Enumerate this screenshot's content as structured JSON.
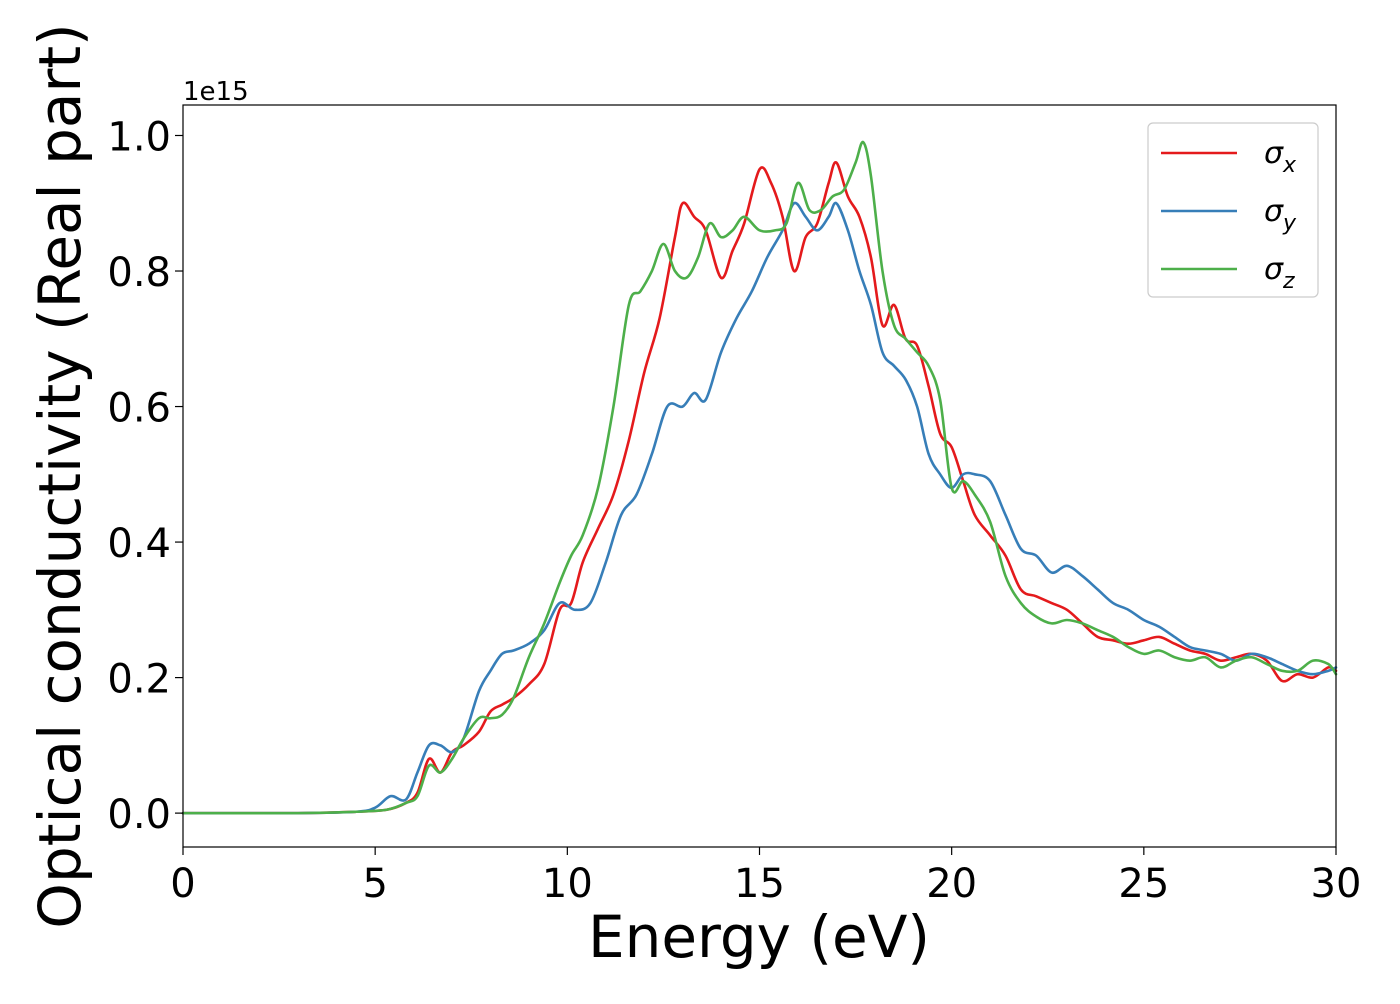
{
  "chart_data": {
    "type": "line",
    "title": "",
    "xlabel": "Energy (eV)",
    "ylabel": "Optical conductivity (Real part)",
    "offset_label": "1e15",
    "xlim": [
      0,
      30
    ],
    "ylim": [
      -0.05,
      1.045
    ],
    "xticks": [
      0,
      5,
      10,
      15,
      20,
      25,
      30
    ],
    "xtick_labels": [
      "0",
      "5",
      "10",
      "15",
      "20",
      "25",
      "30"
    ],
    "yticks": [
      0.0,
      0.2,
      0.4,
      0.6,
      0.8,
      1.0
    ],
    "ytick_labels": [
      "0.0",
      "0.2",
      "0.4",
      "0.6",
      "0.8",
      "1.0"
    ],
    "grid": false,
    "legend_position": "top-right",
    "series": [
      {
        "name": "σx",
        "name_base": "σ",
        "name_sub": "x",
        "color": "#e41a1c",
        "x": [
          0,
          3,
          4.5,
          5.3,
          5.8,
          6.1,
          6.4,
          6.7,
          7.0,
          7.3,
          7.7,
          8.0,
          8.3,
          8.6,
          9.0,
          9.4,
          9.8,
          10.1,
          10.4,
          10.8,
          11.2,
          11.6,
          12.0,
          12.4,
          12.8,
          13.0,
          13.3,
          13.6,
          14.0,
          14.3,
          14.6,
          15.0,
          15.3,
          15.6,
          15.9,
          16.2,
          16.5,
          16.8,
          17.0,
          17.3,
          17.6,
          17.9,
          18.2,
          18.5,
          18.8,
          19.1,
          19.4,
          19.7,
          20.0,
          20.3,
          20.6,
          21.0,
          21.4,
          21.8,
          22.2,
          22.6,
          23.0,
          23.4,
          23.8,
          24.2,
          24.6,
          25.0,
          25.4,
          25.8,
          26.2,
          26.6,
          27.0,
          27.4,
          27.8,
          28.2,
          28.6,
          29.0,
          29.4,
          29.8,
          30.0
        ],
        "y": [
          0.0,
          0.0,
          0.002,
          0.005,
          0.015,
          0.03,
          0.08,
          0.06,
          0.09,
          0.1,
          0.12,
          0.15,
          0.16,
          0.17,
          0.19,
          0.22,
          0.3,
          0.31,
          0.37,
          0.42,
          0.47,
          0.55,
          0.65,
          0.73,
          0.85,
          0.9,
          0.88,
          0.86,
          0.79,
          0.83,
          0.87,
          0.95,
          0.93,
          0.88,
          0.8,
          0.85,
          0.87,
          0.93,
          0.96,
          0.91,
          0.88,
          0.82,
          0.72,
          0.75,
          0.7,
          0.69,
          0.63,
          0.56,
          0.54,
          0.49,
          0.44,
          0.41,
          0.38,
          0.33,
          0.32,
          0.31,
          0.3,
          0.28,
          0.26,
          0.255,
          0.25,
          0.255,
          0.26,
          0.25,
          0.24,
          0.235,
          0.225,
          0.23,
          0.235,
          0.225,
          0.195,
          0.205,
          0.2,
          0.215,
          0.21
        ]
      },
      {
        "name": "σy",
        "name_base": "σ",
        "name_sub": "y",
        "color": "#377eb8",
        "x": [
          0,
          3,
          4.5,
          5.0,
          5.4,
          5.8,
          6.1,
          6.4,
          6.7,
          7.0,
          7.3,
          7.7,
          8.0,
          8.3,
          8.6,
          9.0,
          9.4,
          9.8,
          10.2,
          10.6,
          11.0,
          11.4,
          11.8,
          12.2,
          12.6,
          13.0,
          13.3,
          13.6,
          14.0,
          14.4,
          14.8,
          15.2,
          15.6,
          15.9,
          16.2,
          16.5,
          16.8,
          17.0,
          17.3,
          17.6,
          17.9,
          18.2,
          18.5,
          18.8,
          19.1,
          19.4,
          19.7,
          20.0,
          20.3,
          20.6,
          21.0,
          21.4,
          21.8,
          22.2,
          22.6,
          23.0,
          23.4,
          23.8,
          24.2,
          24.6,
          25.0,
          25.4,
          25.8,
          26.2,
          26.6,
          27.0,
          27.4,
          27.8,
          28.2,
          28.6,
          29.0,
          29.4,
          29.8,
          30.0
        ],
        "y": [
          0.0,
          0.0,
          0.002,
          0.008,
          0.025,
          0.02,
          0.06,
          0.1,
          0.1,
          0.09,
          0.11,
          0.18,
          0.21,
          0.235,
          0.24,
          0.25,
          0.27,
          0.31,
          0.3,
          0.31,
          0.37,
          0.44,
          0.47,
          0.53,
          0.6,
          0.6,
          0.62,
          0.61,
          0.68,
          0.73,
          0.77,
          0.82,
          0.86,
          0.9,
          0.88,
          0.86,
          0.88,
          0.9,
          0.86,
          0.8,
          0.75,
          0.68,
          0.66,
          0.64,
          0.6,
          0.53,
          0.5,
          0.48,
          0.5,
          0.5,
          0.49,
          0.44,
          0.39,
          0.38,
          0.355,
          0.365,
          0.35,
          0.33,
          0.31,
          0.3,
          0.285,
          0.275,
          0.26,
          0.245,
          0.24,
          0.235,
          0.225,
          0.235,
          0.23,
          0.22,
          0.21,
          0.205,
          0.21,
          0.215
        ]
      },
      {
        "name": "σz",
        "name_base": "σ",
        "name_sub": "z",
        "color": "#4daf4a",
        "x": [
          0,
          3,
          4.5,
          5.3,
          5.8,
          6.1,
          6.4,
          6.7,
          7.0,
          7.3,
          7.7,
          8.0,
          8.3,
          8.6,
          9.0,
          9.4,
          9.8,
          10.1,
          10.4,
          10.8,
          11.2,
          11.6,
          11.9,
          12.2,
          12.5,
          12.8,
          13.1,
          13.4,
          13.7,
          14.0,
          14.3,
          14.6,
          15.0,
          15.4,
          15.7,
          16.0,
          16.3,
          16.6,
          16.9,
          17.2,
          17.5,
          17.7,
          17.9,
          18.2,
          18.5,
          18.8,
          19.1,
          19.4,
          19.7,
          20.0,
          20.3,
          20.6,
          21.0,
          21.4,
          21.8,
          22.2,
          22.6,
          23.0,
          23.4,
          23.8,
          24.2,
          24.6,
          25.0,
          25.4,
          25.8,
          26.2,
          26.6,
          27.0,
          27.4,
          27.8,
          28.2,
          28.6,
          29.0,
          29.4,
          29.8,
          30.0
        ],
        "y": [
          0.0,
          0.0,
          0.002,
          0.005,
          0.015,
          0.025,
          0.07,
          0.06,
          0.08,
          0.11,
          0.14,
          0.14,
          0.145,
          0.17,
          0.23,
          0.28,
          0.34,
          0.38,
          0.41,
          0.48,
          0.6,
          0.75,
          0.77,
          0.8,
          0.84,
          0.8,
          0.79,
          0.82,
          0.87,
          0.85,
          0.86,
          0.88,
          0.86,
          0.86,
          0.87,
          0.93,
          0.89,
          0.89,
          0.91,
          0.92,
          0.96,
          0.99,
          0.94,
          0.8,
          0.72,
          0.7,
          0.68,
          0.66,
          0.61,
          0.48,
          0.49,
          0.47,
          0.43,
          0.35,
          0.31,
          0.29,
          0.28,
          0.285,
          0.28,
          0.27,
          0.26,
          0.245,
          0.235,
          0.24,
          0.23,
          0.225,
          0.23,
          0.215,
          0.225,
          0.23,
          0.22,
          0.21,
          0.21,
          0.225,
          0.22,
          0.205
        ]
      }
    ]
  }
}
